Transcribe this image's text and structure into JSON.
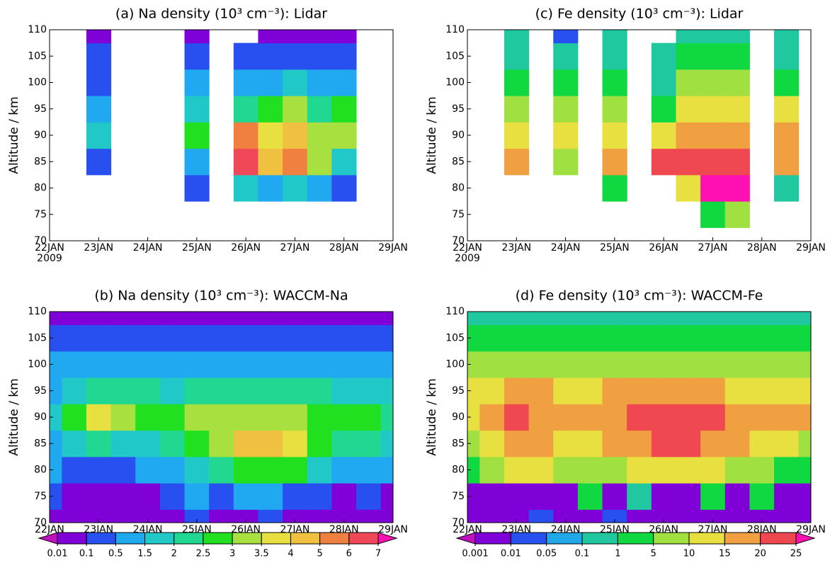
{
  "chart_data": [
    {
      "type": "contour",
      "title": "(a) Na density (10³ cm⁻³): Lidar",
      "ylabel": "Altitude / km",
      "year": "2009",
      "x": [
        22,
        22.5,
        23,
        23.5,
        24,
        24.5,
        25,
        25.5,
        26,
        26.5,
        27,
        27.5,
        28,
        28.5,
        29
      ],
      "y": [
        70,
        75,
        80,
        85,
        90,
        95,
        100,
        105,
        110
      ],
      "z": [
        [
          null,
          null,
          null,
          null,
          null,
          null,
          null,
          null,
          null,
          null,
          null,
          null,
          null,
          null,
          null
        ],
        [
          null,
          null,
          null,
          null,
          null,
          null,
          null,
          null,
          null,
          null,
          null,
          null,
          null,
          null,
          null
        ],
        [
          null,
          null,
          null,
          null,
          null,
          null,
          0.3,
          null,
          1.8,
          0.8,
          1.8,
          1.2,
          0.3,
          null,
          null
        ],
        [
          null,
          null,
          0.3,
          null,
          null,
          null,
          1.2,
          null,
          6.5,
          4.5,
          5.5,
          3.2,
          1.8,
          null,
          null
        ],
        [
          null,
          null,
          1.8,
          null,
          null,
          null,
          2.6,
          null,
          5.5,
          3.8,
          4.5,
          3.3,
          3.2,
          null,
          null
        ],
        [
          null,
          null,
          1.2,
          null,
          null,
          null,
          1.8,
          null,
          2.2,
          2.6,
          3.3,
          2.2,
          2.6,
          null,
          null
        ],
        [
          null,
          null,
          0.3,
          null,
          null,
          null,
          1.0,
          null,
          1.0,
          1.2,
          1.5,
          0.8,
          1.2,
          null,
          null
        ],
        [
          null,
          null,
          0.3,
          null,
          null,
          null,
          0.3,
          null,
          0.3,
          0.3,
          0.3,
          0.3,
          0.3,
          null,
          null
        ],
        [
          null,
          null,
          0.05,
          null,
          null,
          null,
          0.05,
          null,
          null,
          0.05,
          0.05,
          0.05,
          0.05,
          null,
          null
        ]
      ],
      "xlim": [
        22,
        29
      ],
      "ylim": [
        70,
        110
      ],
      "xticks": [
        {
          "value": 22,
          "label": "22JAN"
        },
        {
          "value": 23,
          "label": "23JAN"
        },
        {
          "value": 24,
          "label": "24JAN"
        },
        {
          "value": 25,
          "label": "25JAN"
        },
        {
          "value": 26,
          "label": "26JAN"
        },
        {
          "value": 27,
          "label": "27JAN"
        },
        {
          "value": 28,
          "label": "28JAN"
        },
        {
          "value": 29,
          "label": "29JAN"
        }
      ],
      "yticks": [
        70,
        75,
        80,
        85,
        90,
        95,
        100,
        105,
        110
      ],
      "levels": [
        0.01,
        0.1,
        0.5,
        1.5,
        2,
        2.5,
        3,
        3.5,
        4,
        5,
        6,
        7
      ],
      "colors": [
        "#c010c0",
        "#8000d8",
        "#2850f0",
        "#20a8f0",
        "#20c8c8",
        "#20d890",
        "#20e020",
        "#a8e040",
        "#e8e040",
        "#f0c040",
        "#f08040",
        "#f04858",
        "#ff10b0"
      ]
    },
    {
      "type": "contour",
      "title": "(c) Fe density (10³ cm⁻³): Lidar",
      "ylabel": "Altitude / km",
      "year": "2009",
      "x": [
        22,
        22.5,
        23,
        23.5,
        24,
        24.5,
        25,
        25.5,
        26,
        26.5,
        27,
        27.5,
        28,
        28.5,
        29
      ],
      "y": [
        70,
        75,
        80,
        85,
        90,
        95,
        100,
        105,
        110
      ],
      "z": [
        [
          null,
          null,
          null,
          null,
          null,
          null,
          null,
          null,
          null,
          null,
          null,
          null,
          null,
          null,
          null
        ],
        [
          null,
          null,
          null,
          null,
          null,
          null,
          null,
          null,
          null,
          null,
          3,
          7,
          null,
          null,
          null
        ],
        [
          null,
          null,
          null,
          null,
          null,
          null,
          3,
          null,
          null,
          12,
          27,
          27,
          null,
          0.5,
          null
        ],
        [
          null,
          null,
          15,
          null,
          7,
          null,
          17,
          null,
          22,
          22,
          24,
          22,
          null,
          17,
          null
        ],
        [
          null,
          null,
          12,
          null,
          12,
          null,
          12,
          null,
          12,
          17,
          17,
          17,
          null,
          15,
          null
        ],
        [
          null,
          null,
          7,
          null,
          7,
          null,
          7,
          null,
          3,
          12,
          12,
          12,
          null,
          12,
          null
        ],
        [
          null,
          null,
          3,
          null,
          3,
          null,
          3,
          null,
          0.5,
          7,
          7,
          7,
          null,
          3,
          null
        ],
        [
          null,
          null,
          0.5,
          null,
          0.5,
          null,
          0.5,
          null,
          0.5,
          3,
          3,
          3,
          null,
          0.5,
          null
        ],
        [
          null,
          null,
          0.5,
          null,
          0.02,
          null,
          0.5,
          null,
          null,
          0.5,
          0.5,
          0.5,
          null,
          0.5,
          null
        ]
      ],
      "xlim": [
        22,
        29
      ],
      "ylim": [
        70,
        110
      ],
      "xticks": [
        {
          "value": 22,
          "label": "22JAN"
        },
        {
          "value": 23,
          "label": "23JAN"
        },
        {
          "value": 24,
          "label": "24JAN"
        },
        {
          "value": 25,
          "label": "25JAN"
        },
        {
          "value": 26,
          "label": "26JAN"
        },
        {
          "value": 27,
          "label": "27JAN"
        },
        {
          "value": 28,
          "label": "28JAN"
        },
        {
          "value": 29,
          "label": "29JAN"
        }
      ],
      "yticks": [
        70,
        75,
        80,
        85,
        90,
        95,
        100,
        105,
        110
      ],
      "levels": [
        0.001,
        0.01,
        0.05,
        0.1,
        1,
        5,
        10,
        15,
        20,
        25
      ],
      "colors": [
        "#c010c0",
        "#8000d8",
        "#2850f0",
        "#20a8e8",
        "#20c8a0",
        "#10d840",
        "#a0e040",
        "#e8e040",
        "#f0a040",
        "#f04850",
        "#ff10b0"
      ]
    },
    {
      "type": "contour",
      "title": "(b) Na density (10³ cm⁻³): WACCM-Na",
      "ylabel": "Altitude / km",
      "x": [
        22,
        22.5,
        23,
        23.5,
        24,
        24.5,
        25,
        25.5,
        26,
        26.5,
        27,
        27.5,
        28,
        28.5,
        29
      ],
      "y": [
        70,
        75,
        80,
        85,
        90,
        95,
        100,
        105,
        110
      ],
      "z": [
        [
          0.05,
          0.05,
          0.05,
          0.05,
          0.05,
          0.05,
          0.3,
          0.05,
          0.05,
          0.3,
          0.05,
          0.05,
          0.05,
          0.05,
          0.05
        ],
        [
          0.3,
          0.05,
          0.05,
          0.05,
          0.05,
          0.3,
          1.0,
          0.3,
          1.0,
          1.2,
          0.3,
          0.3,
          0.05,
          0.3,
          0.05
        ],
        [
          0.8,
          0.3,
          0.3,
          0.3,
          0.8,
          1.2,
          1.8,
          2.2,
          2.8,
          2.8,
          2.6,
          1.8,
          1.0,
          1.2,
          0.8
        ],
        [
          1.2,
          1.8,
          2.2,
          1.8,
          1.8,
          2.2,
          2.6,
          3.2,
          4.2,
          4.2,
          3.8,
          2.6,
          2.2,
          2.2,
          1.8
        ],
        [
          1.8,
          2.8,
          3.7,
          3.2,
          2.8,
          2.6,
          3.1,
          3.3,
          3.4,
          3.2,
          3.3,
          2.8,
          2.6,
          2.6,
          2.2
        ],
        [
          1.4,
          1.8,
          2.2,
          2.2,
          2.0,
          1.8,
          2.2,
          2.4,
          2.2,
          2.3,
          2.2,
          2.0,
          1.8,
          1.8,
          1.6
        ],
        [
          1.0,
          1.0,
          1.0,
          1.0,
          1.0,
          1.0,
          1.0,
          1.0,
          1.0,
          1.0,
          1.0,
          1.0,
          1.0,
          1.0,
          1.0
        ],
        [
          0.3,
          0.3,
          0.3,
          0.3,
          0.3,
          0.3,
          0.3,
          0.3,
          0.3,
          0.3,
          0.3,
          0.3,
          0.3,
          0.3,
          0.3
        ],
        [
          0.05,
          0.05,
          0.05,
          0.05,
          0.05,
          0.05,
          0.05,
          0.05,
          0.05,
          0.05,
          0.05,
          0.05,
          0.05,
          0.05,
          0.05
        ]
      ],
      "xlim": [
        22,
        29
      ],
      "ylim": [
        70,
        110
      ],
      "xticks": [
        {
          "value": 22,
          "label": "22JAN"
        },
        {
          "value": 23,
          "label": "23JAN"
        },
        {
          "value": 24,
          "label": "24JAN"
        },
        {
          "value": 25,
          "label": "25JAN"
        },
        {
          "value": 26,
          "label": "26JAN"
        },
        {
          "value": 27,
          "label": "27JAN"
        },
        {
          "value": 28,
          "label": "28JAN"
        },
        {
          "value": 29,
          "label": "29JAN"
        }
      ],
      "yticks": [
        70,
        75,
        80,
        85,
        90,
        95,
        100,
        105,
        110
      ],
      "levels": [
        0.01,
        0.1,
        0.5,
        1.5,
        2,
        2.5,
        3,
        3.5,
        4,
        5,
        6,
        7
      ],
      "colors": [
        "#c010c0",
        "#8000d8",
        "#2850f0",
        "#20a8f0",
        "#20c8c8",
        "#20d890",
        "#20e020",
        "#a8e040",
        "#e8e040",
        "#f0c040",
        "#f08040",
        "#f04858",
        "#ff10b0"
      ],
      "colorbar": true
    },
    {
      "type": "contour",
      "title": "(d) Fe density (10³ cm⁻³): WACCM-Fe",
      "ylabel": "Altitude / km",
      "x": [
        22,
        22.5,
        23,
        23.5,
        24,
        24.5,
        25,
        25.5,
        26,
        26.5,
        27,
        27.5,
        28,
        28.5,
        29
      ],
      "y": [
        70,
        75,
        80,
        85,
        90,
        95,
        100,
        105,
        110
      ],
      "z": [
        [
          0.005,
          0.005,
          0.005,
          0.02,
          0.005,
          0.005,
          0.02,
          0.005,
          0.005,
          0.005,
          0.005,
          0.005,
          0.005,
          0.005,
          0.005
        ],
        [
          0.005,
          0.005,
          0.005,
          0.005,
          0.005,
          3,
          0.005,
          0.5,
          0.005,
          0.005,
          3,
          0.005,
          3,
          0.005,
          0.005
        ],
        [
          3,
          7,
          12,
          12,
          7,
          7,
          7,
          12,
          12,
          12,
          12,
          7,
          7,
          3,
          3
        ],
        [
          7,
          12,
          17,
          15,
          12,
          12,
          15,
          17,
          22,
          22,
          17,
          15,
          12,
          12,
          7
        ],
        [
          12,
          17,
          22,
          17,
          17,
          17,
          17,
          22,
          22,
          22,
          22,
          17,
          17,
          17,
          17
        ],
        [
          12,
          12,
          17,
          15,
          12,
          12,
          15,
          17,
          17,
          17,
          15,
          12,
          12,
          12,
          12
        ],
        [
          7,
          7,
          7,
          7,
          7,
          7,
          7,
          7,
          7,
          7,
          7,
          7,
          7,
          7,
          7
        ],
        [
          3,
          3,
          3,
          3,
          3,
          3,
          3,
          3,
          3,
          3,
          3,
          3,
          3,
          3,
          3
        ],
        [
          0.5,
          0.5,
          0.5,
          0.5,
          0.5,
          0.5,
          0.5,
          0.5,
          0.5,
          0.5,
          0.5,
          0.5,
          0.5,
          0.5,
          0.5
        ]
      ],
      "xlim": [
        22,
        29
      ],
      "ylim": [
        70,
        110
      ],
      "xticks": [
        {
          "value": 22,
          "label": "22JAN"
        },
        {
          "value": 23,
          "label": "23JAN"
        },
        {
          "value": 24,
          "label": "24JAN"
        },
        {
          "value": 25,
          "label": "25JAN"
        },
        {
          "value": 26,
          "label": "26JAN"
        },
        {
          "value": 27,
          "label": "27JAN"
        },
        {
          "value": 28,
          "label": "28JAN"
        },
        {
          "value": 29,
          "label": "29JAN"
        }
      ],
      "yticks": [
        70,
        75,
        80,
        85,
        90,
        95,
        100,
        105,
        110
      ],
      "levels": [
        0.001,
        0.01,
        0.05,
        0.1,
        1,
        5,
        10,
        15,
        20,
        25
      ],
      "colors": [
        "#c010c0",
        "#8000d8",
        "#2850f0",
        "#20a8e8",
        "#20c8a0",
        "#10d840",
        "#a0e040",
        "#e8e040",
        "#f0a040",
        "#f04850",
        "#ff10b0"
      ],
      "colorbar": true
    }
  ]
}
